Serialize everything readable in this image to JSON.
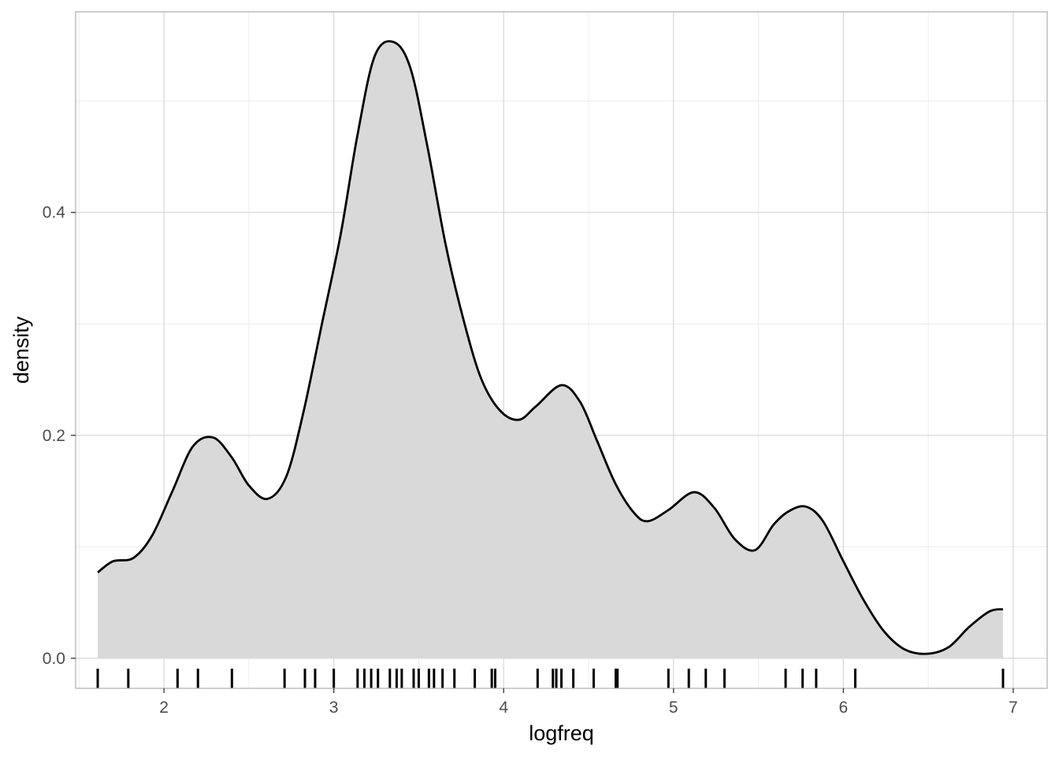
{
  "chart_data": {
    "type": "area",
    "subtype": "density",
    "title": "",
    "xlabel": "logfreq",
    "ylabel": "density",
    "xlim": [
      1.48,
      7.2
    ],
    "ylim": [
      -0.027,
      0.58
    ],
    "x_ticks": [
      2,
      3,
      4,
      5,
      6,
      7
    ],
    "x_tick_labels": [
      "2",
      "3",
      "4",
      "5",
      "6",
      "7"
    ],
    "y_ticks": [
      0.0,
      0.2,
      0.4
    ],
    "y_tick_labels": [
      "0.0",
      "0.2",
      "0.4"
    ],
    "x_minor_gridlines": [
      1.5,
      2.5,
      3.5,
      4.5,
      5.5,
      6.5
    ],
    "y_minor_gridlines": [
      0.1,
      0.3,
      0.5
    ],
    "grid": true,
    "legend": "none",
    "colors": {
      "fill": "#d9d9d9",
      "line": "#000000",
      "rug": "#000000",
      "major_grid": "#d9d9d9",
      "minor_grid": "#ececec",
      "panel_border": "#b3b3b3"
    },
    "density_curve": {
      "x": [
        1.61,
        1.7,
        1.82,
        1.93,
        2.05,
        2.17,
        2.29,
        2.4,
        2.5,
        2.61,
        2.72,
        2.82,
        2.93,
        3.04,
        3.14,
        3.24,
        3.35,
        3.45,
        3.55,
        3.66,
        3.77,
        3.87,
        3.98,
        4.09,
        4.19,
        4.34,
        4.45,
        4.55,
        4.66,
        4.77,
        4.85,
        4.97,
        5.12,
        5.24,
        5.36,
        5.48,
        5.59,
        5.68,
        5.78,
        5.88,
        6.0,
        6.12,
        6.24,
        6.36,
        6.49,
        6.62,
        6.74,
        6.86,
        6.94
      ],
      "y": [
        0.077,
        0.087,
        0.09,
        0.11,
        0.15,
        0.19,
        0.198,
        0.18,
        0.155,
        0.143,
        0.163,
        0.22,
        0.3,
        0.38,
        0.47,
        0.54,
        0.553,
        0.53,
        0.46,
        0.37,
        0.3,
        0.25,
        0.222,
        0.214,
        0.226,
        0.245,
        0.23,
        0.195,
        0.156,
        0.13,
        0.123,
        0.133,
        0.149,
        0.135,
        0.107,
        0.097,
        0.12,
        0.132,
        0.136,
        0.123,
        0.087,
        0.052,
        0.024,
        0.008,
        0.004,
        0.01,
        0.028,
        0.042,
        0.044
      ]
    },
    "rug_x": [
      1.61,
      1.79,
      2.08,
      2.2,
      2.4,
      2.71,
      2.83,
      2.89,
      3.0,
      3.14,
      3.18,
      3.22,
      3.26,
      3.33,
      3.37,
      3.4,
      3.47,
      3.5,
      3.56,
      3.59,
      3.64,
      3.71,
      3.83,
      3.93,
      3.95,
      4.2,
      4.29,
      4.31,
      4.34,
      4.41,
      4.53,
      4.66,
      4.67,
      4.97,
      5.09,
      5.19,
      5.3,
      5.66,
      5.76,
      5.84,
      6.07,
      6.94
    ]
  }
}
